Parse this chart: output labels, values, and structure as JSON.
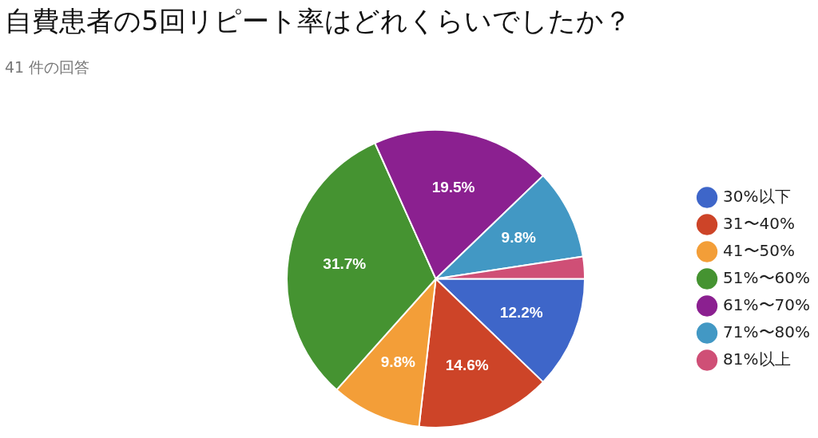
{
  "chart_data": {
    "type": "pie",
    "title": "自費患者の5回リピート率はどれくらいでしたか？",
    "subtitle": "41 件の回答",
    "categories": [
      "30%以下",
      "31〜40%",
      "41〜50%",
      "51%〜60%",
      "61%〜70%",
      "71%〜80%",
      "81%以上"
    ],
    "values": [
      12.2,
      14.6,
      9.8,
      31.7,
      19.5,
      9.8,
      2.4
    ],
    "value_labels": [
      "12.2%",
      "14.6%",
      "9.8%",
      "31.7%",
      "19.5%",
      "9.8%",
      null
    ],
    "colors": [
      "#3e66c9",
      "#cd4428",
      "#f39e38",
      "#459331",
      "#8b2090",
      "#4298c4",
      "#cf4f76"
    ],
    "legend": "right"
  }
}
